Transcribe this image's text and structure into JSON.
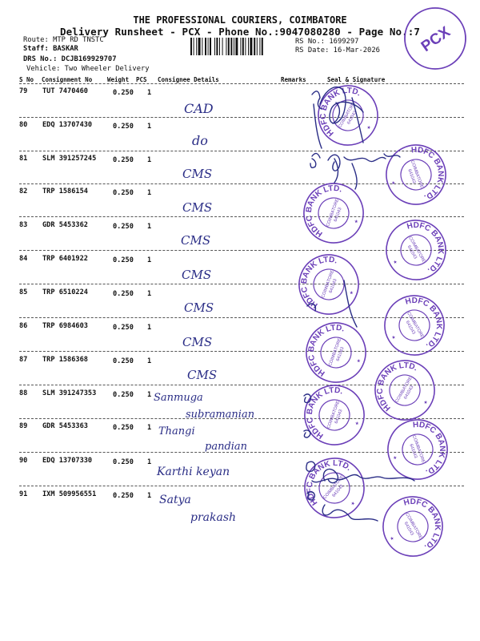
{
  "header": {
    "company": "THE PROFESSIONAL COURIERS, COIMBATORE",
    "subtitle": "Delivery Runsheet - PCX - Phone No.:9047080280 - Page No.:7"
  },
  "info": {
    "route": "Route: MTP RD TNSTC",
    "staff": "Staff: BASKAR",
    "drs": "DRS No.: DCJB169929707",
    "vehicle": "Vehicle: Two Wheeler Delivery",
    "rs_no": "RS No.: 1699297",
    "rs_date": "RS Date: 16-Mar-2026"
  },
  "stamp_text": "PCX",
  "columns": {
    "sno": "S No",
    "consignment": "Consignment No",
    "weight": "Weight",
    "pcs": "PCS",
    "consignee": "Consignee Details",
    "remarks": "Remarks",
    "seal": "Seal & Signature"
  },
  "rows": [
    {
      "sno": "79",
      "consignment": "TUT 7470460",
      "weight": "0.250",
      "pcs": "1",
      "consignee": "CAD",
      "consignee2": ""
    },
    {
      "sno": "80",
      "consignment": "EDQ 13707430",
      "weight": "0.250",
      "pcs": "1",
      "consignee": "do",
      "consignee2": ""
    },
    {
      "sno": "81",
      "consignment": "SLM 391257245",
      "weight": "0.250",
      "pcs": "1",
      "consignee": "CMS",
      "consignee2": ""
    },
    {
      "sno": "82",
      "consignment": "TRP 1586154",
      "weight": "0.250",
      "pcs": "1",
      "consignee": "CMS",
      "consignee2": ""
    },
    {
      "sno": "83",
      "consignment": "GDR 5453362",
      "weight": "0.250",
      "pcs": "1",
      "consignee": "CMS",
      "consignee2": ""
    },
    {
      "sno": "84",
      "consignment": "TRP 6401922",
      "weight": "0.250",
      "pcs": "1",
      "consignee": "CMS",
      "consignee2": ""
    },
    {
      "sno": "85",
      "consignment": "TRP 6510224",
      "weight": "0.250",
      "pcs": "1",
      "consignee": "CMS",
      "consignee2": ""
    },
    {
      "sno": "86",
      "consignment": "TRP 6984603",
      "weight": "0.250",
      "pcs": "1",
      "consignee": "CMS",
      "consignee2": ""
    },
    {
      "sno": "87",
      "consignment": "TRP 1586368",
      "weight": "0.250",
      "pcs": "1",
      "consignee": "CMS",
      "consignee2": ""
    },
    {
      "sno": "88",
      "consignment": "SLM 391247353",
      "weight": "0.250",
      "pcs": "1",
      "consignee": "Sanmuga",
      "consignee2": "subramanian"
    },
    {
      "sno": "89",
      "consignment": "GDR 5453363",
      "weight": "0.250",
      "pcs": "1",
      "consignee": "Thangi",
      "consignee2": "pandian"
    },
    {
      "sno": "90",
      "consignment": "EDQ 13707330",
      "weight": "0.250",
      "pcs": "1",
      "consignee": "Karthi keyan",
      "consignee2": ""
    },
    {
      "sno": "91",
      "consignment": "IXM 509956551",
      "weight": "0.250",
      "pcs": "1",
      "consignee": "Satya",
      "consignee2": "prakash"
    }
  ],
  "seal": {
    "top_text": "HDFC BANK LTD.",
    "inner1": "COIMBATORE",
    "inner2": "641043",
    "color": "#6b3fb8"
  },
  "colors": {
    "ink": "#2a2d86",
    "stamp": "#6b3fb8"
  }
}
